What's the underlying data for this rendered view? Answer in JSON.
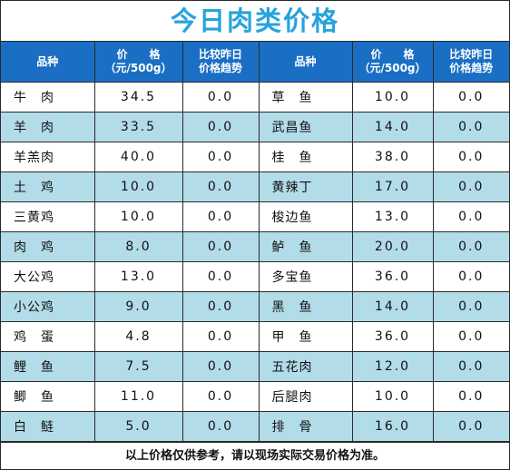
{
  "title": "今日肉类价格",
  "headers": {
    "name": "品种",
    "price_line1": "价　　格",
    "price_line2": "（元/500g）",
    "trend_line1": "比较昨日",
    "trend_line2": "价格趋势"
  },
  "rows": [
    {
      "left": {
        "name": "牛　肉",
        "price": "34.5",
        "trend": "0.0"
      },
      "right": {
        "name": "草　鱼",
        "price": "10.0",
        "trend": "0.0"
      }
    },
    {
      "left": {
        "name": "羊　肉",
        "price": "33.5",
        "trend": "0.0"
      },
      "right": {
        "name": "武昌鱼",
        "price": "14.0",
        "trend": "0.0"
      }
    },
    {
      "left": {
        "name": "羊羔肉",
        "price": "40.0",
        "trend": "0.0"
      },
      "right": {
        "name": "桂　鱼",
        "price": "38.0",
        "trend": "0.0"
      }
    },
    {
      "left": {
        "name": "土　鸡",
        "price": "10.0",
        "trend": "0.0"
      },
      "right": {
        "name": "黄辣丁",
        "price": "17.0",
        "trend": "0.0"
      }
    },
    {
      "left": {
        "name": "三黄鸡",
        "price": "10.0",
        "trend": "0.0"
      },
      "right": {
        "name": "梭边鱼",
        "price": "13.0",
        "trend": "0.0"
      }
    },
    {
      "left": {
        "name": "肉　鸡",
        "price": "8.0",
        "trend": "0.0"
      },
      "right": {
        "name": "鲈　鱼",
        "price": "20.0",
        "trend": "0.0"
      }
    },
    {
      "left": {
        "name": "大公鸡",
        "price": "13.0",
        "trend": "0.0"
      },
      "right": {
        "name": "多宝鱼",
        "price": "36.0",
        "trend": "0.0"
      }
    },
    {
      "left": {
        "name": "小公鸡",
        "price": "9.0",
        "trend": "0.0"
      },
      "right": {
        "name": "黑　鱼",
        "price": "14.0",
        "trend": "0.0"
      }
    },
    {
      "left": {
        "name": "鸡　蛋",
        "price": "4.8",
        "trend": "0.0"
      },
      "right": {
        "name": "甲　鱼",
        "price": "36.0",
        "trend": "0.0"
      }
    },
    {
      "left": {
        "name": "鲤　鱼",
        "price": "7.5",
        "trend": "0.0"
      },
      "right": {
        "name": "五花肉",
        "price": "12.0",
        "trend": "0.0"
      }
    },
    {
      "left": {
        "name": "鲫　鱼",
        "price": "11.0",
        "trend": "0.0"
      },
      "right": {
        "name": "后腿肉",
        "price": "10.0",
        "trend": "0.0"
      }
    },
    {
      "left": {
        "name": "白　鲢",
        "price": "5.0",
        "trend": "0.0"
      },
      "right": {
        "name": "排　骨",
        "price": "16.0",
        "trend": "0.0"
      }
    }
  ],
  "footer": "以上价格仅供参考，请以现场实际交易价格为准。",
  "colors": {
    "title": "#27a3dd",
    "header_bg": "#1a6fc4",
    "alt_row_bg": "#b3dce9"
  }
}
